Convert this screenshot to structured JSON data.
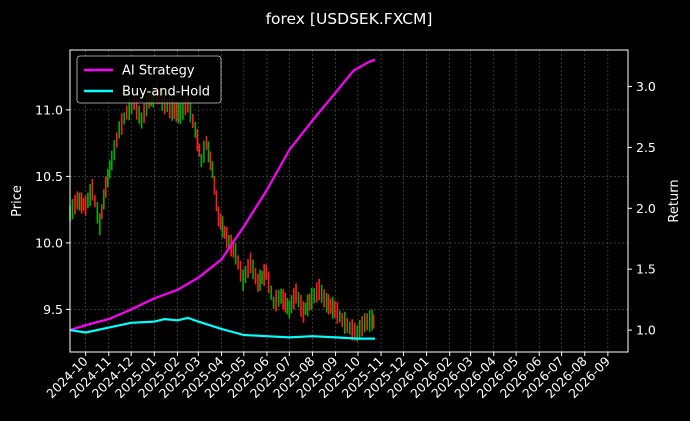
{
  "chart_data": {
    "type": "line",
    "title": "forex [USDSEK.FXCM]",
    "ylabel_left": "Price",
    "ylabel_right": "Return",
    "x_range": [
      "2024-09-10",
      "2026-09-28"
    ],
    "x_tick_labels": [
      "2024-10",
      "2024-11",
      "2024-12",
      "2025-01",
      "2025-02",
      "2025-03",
      "2025-04",
      "2025-05",
      "2025-06",
      "2025-07",
      "2025-08",
      "2025-09",
      "2025-10",
      "2025-11",
      "2025-12",
      "2026-01",
      "2026-02",
      "2026-03",
      "2026-04",
      "2026-05",
      "2026-06",
      "2026-07",
      "2026-08",
      "2026-09"
    ],
    "y_left": {
      "range": [
        9.18,
        11.45
      ],
      "ticks": [
        9.5,
        10.0,
        10.5,
        11.0
      ],
      "tick_labels": [
        "9.5",
        "10.0",
        "10.5",
        "11.0"
      ]
    },
    "y_right": {
      "range": [
        0.82,
        3.3
      ],
      "ticks": [
        1.0,
        1.5,
        2.0,
        2.5,
        3.0
      ],
      "tick_labels": [
        "1.0",
        "1.5",
        "2.0",
        "2.5",
        "3.0"
      ]
    },
    "grid": true,
    "legend_position": "top-left",
    "series": [
      {
        "name": "AI Strategy",
        "axis": "right",
        "color": "#ff00ff",
        "points": [
          [
            "2024-09-10",
            1.0
          ],
          [
            "2024-10-01",
            1.04
          ],
          [
            "2024-11-01",
            1.09
          ],
          [
            "2024-12-01",
            1.17
          ],
          [
            "2025-01-01",
            1.26
          ],
          [
            "2025-02-01",
            1.33
          ],
          [
            "2025-03-01",
            1.43
          ],
          [
            "2025-04-01",
            1.58
          ],
          [
            "2025-05-01",
            1.85
          ],
          [
            "2025-06-01",
            2.15
          ],
          [
            "2025-07-01",
            2.48
          ],
          [
            "2025-08-01",
            2.72
          ],
          [
            "2025-09-01",
            2.95
          ],
          [
            "2025-09-25",
            3.13
          ],
          [
            "2025-10-15",
            3.2
          ],
          [
            "2025-10-24",
            3.22
          ]
        ]
      },
      {
        "name": "Buy-and-Hold",
        "axis": "right",
        "color": "#00ffff",
        "points": [
          [
            "2024-09-10",
            1.0
          ],
          [
            "2024-10-01",
            0.98
          ],
          [
            "2024-11-01",
            1.02
          ],
          [
            "2024-12-01",
            1.06
          ],
          [
            "2025-01-01",
            1.07
          ],
          [
            "2025-01-15",
            1.09
          ],
          [
            "2025-02-01",
            1.08
          ],
          [
            "2025-02-15",
            1.1
          ],
          [
            "2025-03-01",
            1.07
          ],
          [
            "2025-04-01",
            1.01
          ],
          [
            "2025-05-01",
            0.96
          ],
          [
            "2025-06-01",
            0.95
          ],
          [
            "2025-07-01",
            0.94
          ],
          [
            "2025-08-01",
            0.95
          ],
          [
            "2025-09-01",
            0.94
          ],
          [
            "2025-10-01",
            0.93
          ],
          [
            "2025-10-24",
            0.93
          ]
        ]
      },
      {
        "name": "USDSEK price",
        "axis": "left",
        "colors": {
          "up": "#00b000",
          "down": "#ff1e1e"
        },
        "points": [
          [
            "2024-09-10",
            10.22
          ],
          [
            "2024-09-20",
            10.32
          ],
          [
            "2024-10-01",
            10.28
          ],
          [
            "2024-10-10",
            10.4
          ],
          [
            "2024-10-20",
            10.14
          ],
          [
            "2024-10-28",
            10.42
          ],
          [
            "2024-11-05",
            10.62
          ],
          [
            "2024-11-15",
            10.85
          ],
          [
            "2024-11-25",
            10.98
          ],
          [
            "2024-12-05",
            11.05
          ],
          [
            "2024-12-15",
            10.92
          ],
          [
            "2024-12-25",
            11.08
          ],
          [
            "2025-01-05",
            11.12
          ],
          [
            "2025-01-15",
            11.05
          ],
          [
            "2025-01-25",
            11.0
          ],
          [
            "2025-02-05",
            10.97
          ],
          [
            "2025-02-15",
            11.05
          ],
          [
            "2025-02-25",
            10.85
          ],
          [
            "2025-03-05",
            10.62
          ],
          [
            "2025-03-12",
            10.75
          ],
          [
            "2025-03-20",
            10.55
          ],
          [
            "2025-03-28",
            10.2
          ],
          [
            "2025-04-08",
            10.04
          ],
          [
            "2025-04-20",
            9.92
          ],
          [
            "2025-04-30",
            9.72
          ],
          [
            "2025-05-10",
            9.85
          ],
          [
            "2025-05-20",
            9.7
          ],
          [
            "2025-05-31",
            9.78
          ],
          [
            "2025-06-10",
            9.55
          ],
          [
            "2025-06-20",
            9.6
          ],
          [
            "2025-07-01",
            9.5
          ],
          [
            "2025-07-10",
            9.62
          ],
          [
            "2025-07-20",
            9.48
          ],
          [
            "2025-07-31",
            9.58
          ],
          [
            "2025-08-10",
            9.65
          ],
          [
            "2025-08-20",
            9.55
          ],
          [
            "2025-08-31",
            9.5
          ],
          [
            "2025-09-10",
            9.42
          ],
          [
            "2025-09-20",
            9.36
          ],
          [
            "2025-09-30",
            9.32
          ],
          [
            "2025-10-10",
            9.4
          ],
          [
            "2025-10-20",
            9.42
          ],
          [
            "2025-10-24",
            9.4
          ]
        ]
      }
    ]
  }
}
